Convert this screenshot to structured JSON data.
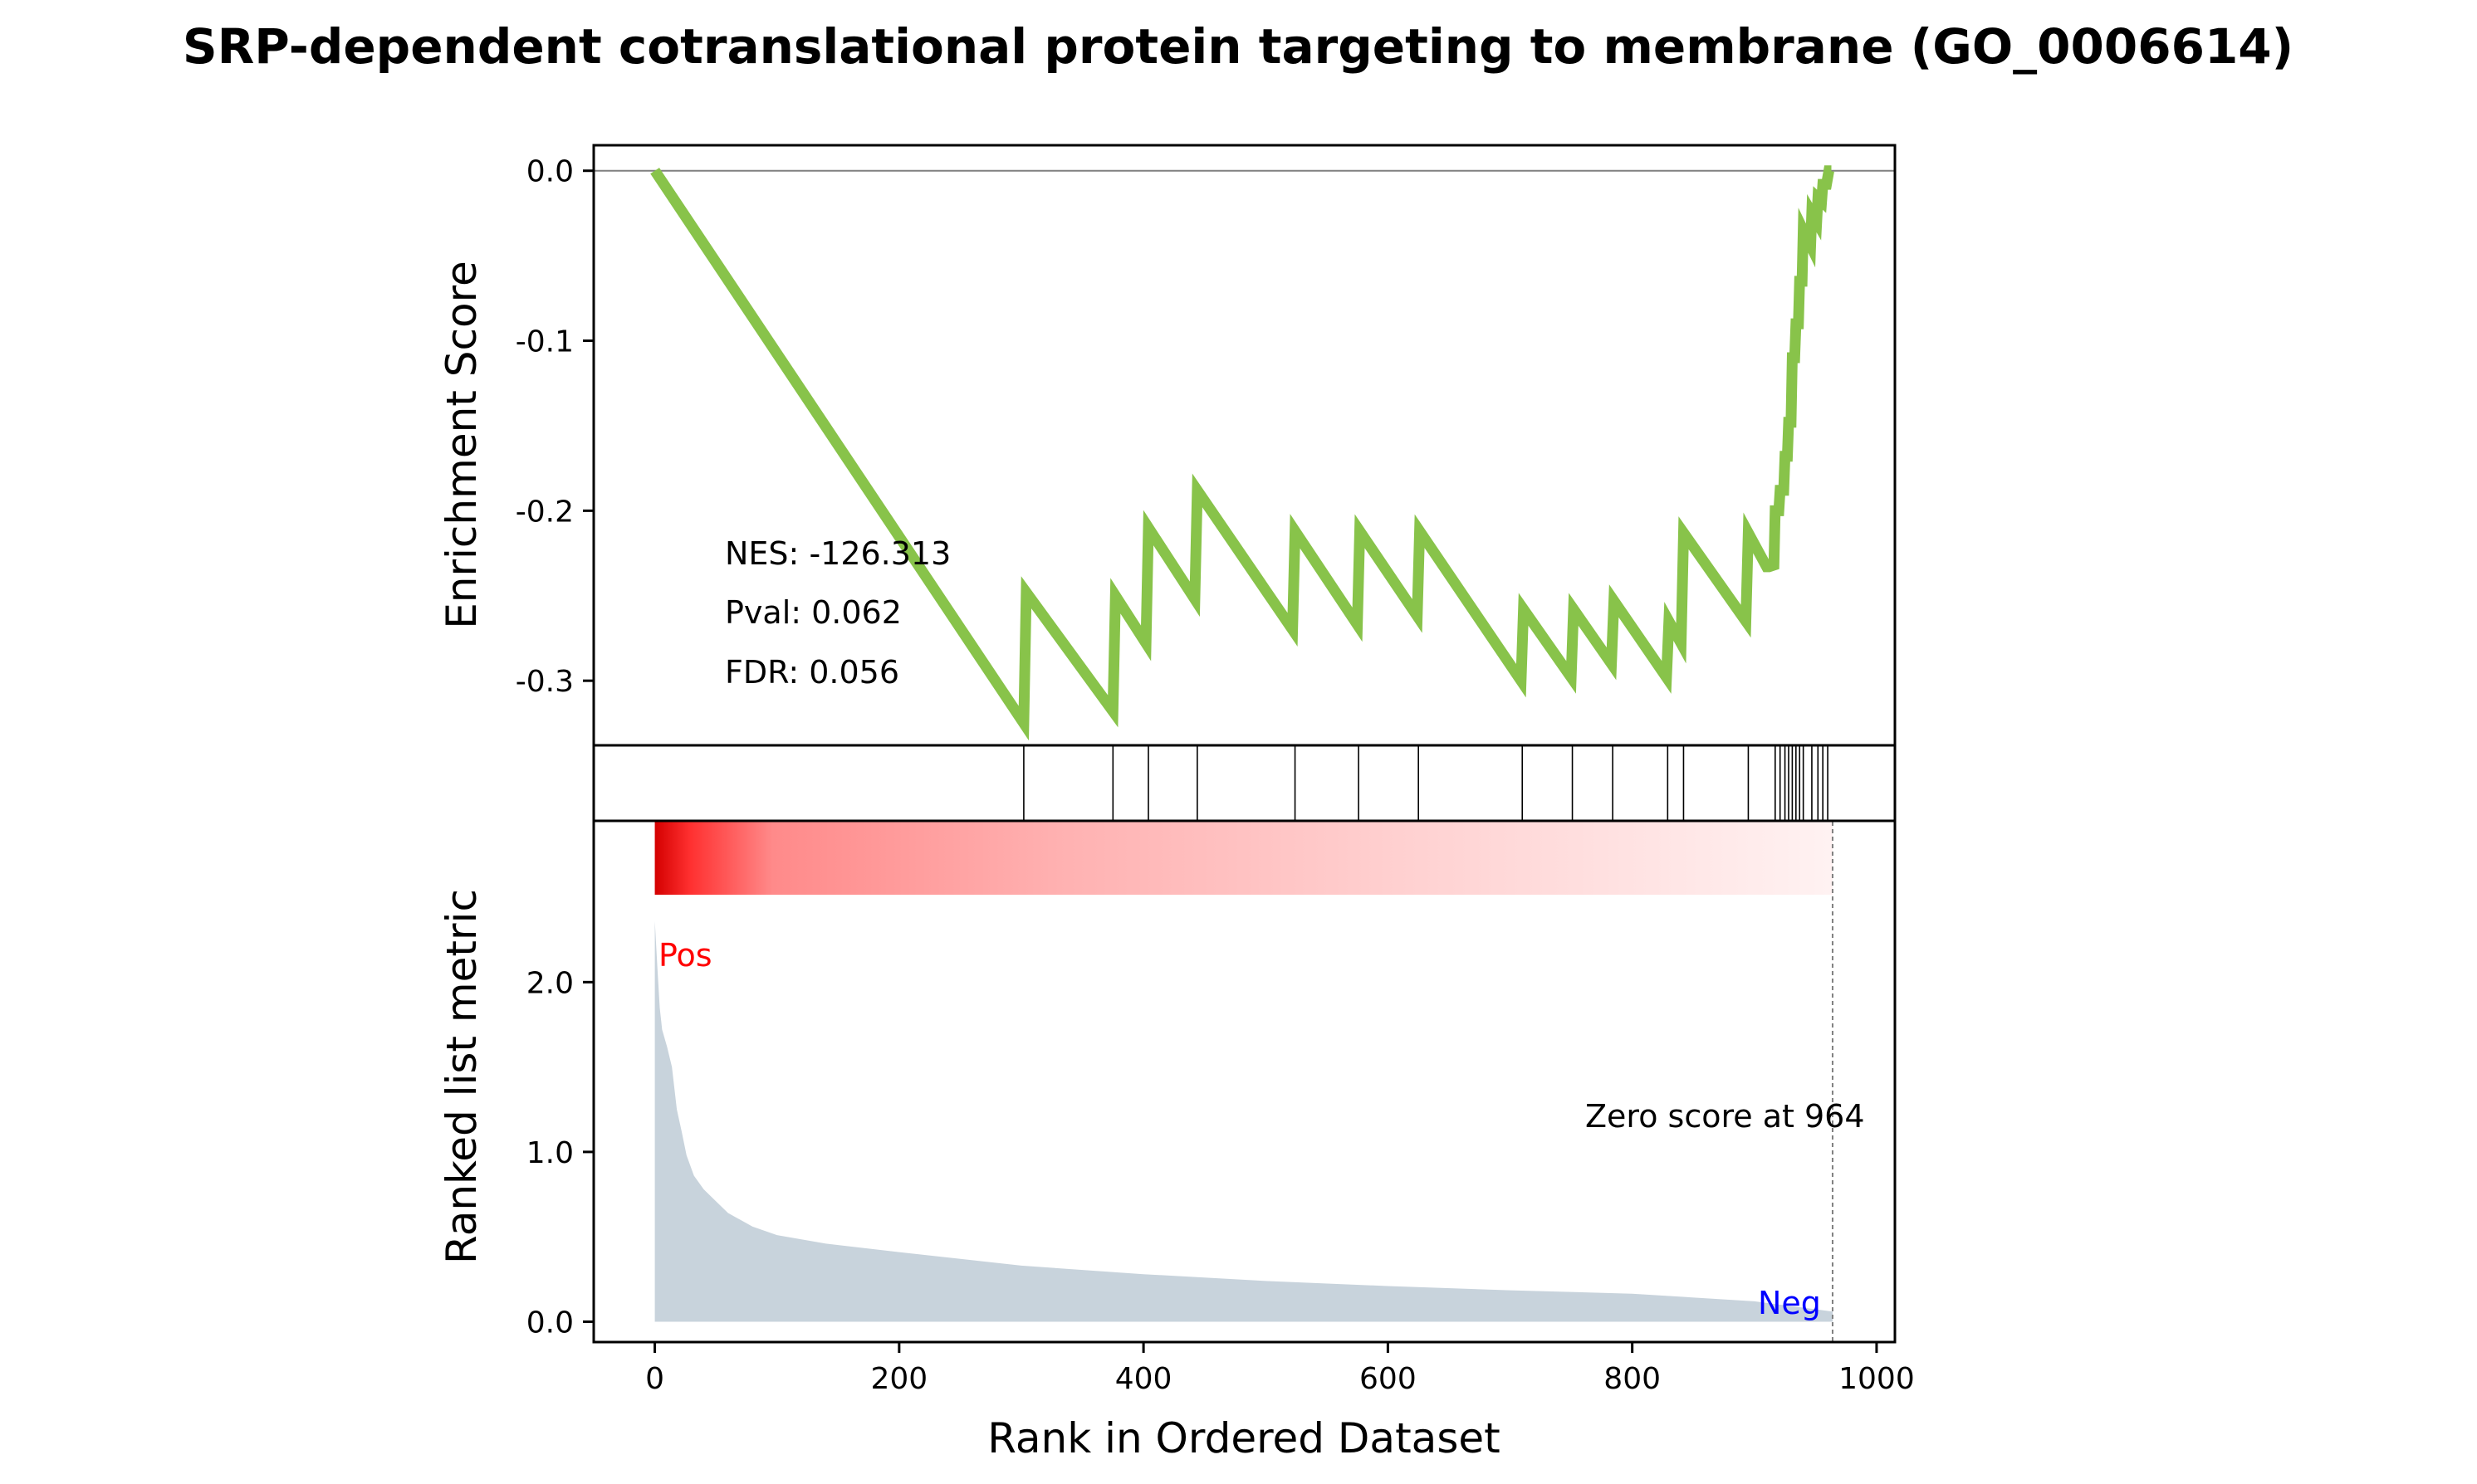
{
  "title": "SRP-dependent cotranslational protein targeting to membrane (GO_0006614)",
  "chart_data": {
    "type": "line",
    "title": "SRP-dependent cotranslational protein targeting to membrane (GO_0006614)",
    "xlabel": "Rank in Ordered Dataset",
    "xlim": [
      -50,
      1015
    ],
    "x_ticks": [
      0,
      200,
      400,
      600,
      800,
      1000
    ],
    "x_tick_labels": [
      "0",
      "200",
      "400",
      "600",
      "800",
      "1000"
    ],
    "panels": {
      "enrichment": {
        "ylabel": "Enrichment Score",
        "ylim": [
          -0.338,
          0.015
        ],
        "y_ticks": [
          0.0,
          -0.1,
          -0.2,
          -0.3
        ],
        "y_tick_labels": [
          "0.0",
          "-0.1",
          "-0.2",
          "-0.3"
        ],
        "line_color": "#88c34a",
        "zero_line_color": "#808080",
        "annotations": {
          "nes": "NES: -126.313",
          "pval": "Pval: 0.062",
          "fdr": "FDR: 0.056"
        },
        "running_es": [
          [
            0,
            0.0
          ],
          [
            302,
            -0.325
          ],
          [
            304,
            -0.248
          ],
          [
            375,
            -0.318
          ],
          [
            377,
            -0.25
          ],
          [
            402,
            -0.278
          ],
          [
            404,
            -0.21
          ],
          [
            442,
            -0.252
          ],
          [
            444,
            -0.188
          ],
          [
            522,
            -0.27
          ],
          [
            524,
            -0.212
          ],
          [
            575,
            -0.267
          ],
          [
            577,
            -0.212
          ],
          [
            624,
            -0.262
          ],
          [
            626,
            -0.212
          ],
          [
            709,
            -0.3
          ],
          [
            711,
            -0.258
          ],
          [
            750,
            -0.298
          ],
          [
            752,
            -0.258
          ],
          [
            783,
            -0.29
          ],
          [
            785,
            -0.253
          ],
          [
            828,
            -0.298
          ],
          [
            830,
            -0.265
          ],
          [
            840,
            -0.278
          ],
          [
            842,
            -0.213
          ],
          [
            893,
            -0.265
          ],
          [
            895,
            -0.213
          ],
          [
            910,
            -0.233
          ],
          [
            912,
            -0.233
          ],
          [
            916,
            -0.232
          ],
          [
            917,
            -0.2
          ],
          [
            920,
            -0.2
          ],
          [
            921,
            -0.188
          ],
          [
            924,
            -0.188
          ],
          [
            925,
            -0.168
          ],
          [
            927,
            -0.168
          ],
          [
            928,
            -0.148
          ],
          [
            930,
            -0.148
          ],
          [
            931,
            -0.11
          ],
          [
            933,
            -0.11
          ],
          [
            934,
            -0.09
          ],
          [
            936,
            -0.09
          ],
          [
            937,
            -0.065
          ],
          [
            939,
            -0.065
          ],
          [
            940,
            -0.035
          ],
          [
            946,
            -0.044
          ],
          [
            947,
            -0.025
          ],
          [
            951,
            -0.03
          ],
          [
            952,
            -0.016
          ],
          [
            955,
            -0.018
          ],
          [
            956,
            -0.008
          ],
          [
            959,
            -0.008
          ],
          [
            961,
            0.0
          ],
          [
            963,
            0.0
          ]
        ]
      },
      "hits": {
        "positions": [
          302,
          375,
          404,
          444,
          524,
          576,
          625,
          710,
          751,
          784,
          829,
          842,
          895,
          917,
          921,
          925,
          928,
          931,
          934,
          937,
          940,
          947,
          952,
          956,
          960
        ]
      },
      "ranked_metric": {
        "ylabel": "Ranked list metric",
        "ylim": [
          -0.12,
          2.95
        ],
        "y_ticks": [
          0.0,
          1.0,
          2.0
        ],
        "y_tick_labels": [
          "0.0",
          "1.0",
          "2.0"
        ],
        "fill_color": "#c8d3dc",
        "pos_label": "Pos",
        "neg_label": "Neg",
        "zero_score_label": "Zero score at 964",
        "zero_score_rank": 964,
        "profile": [
          [
            0,
            2.36
          ],
          [
            2,
            2.1
          ],
          [
            4,
            1.85
          ],
          [
            6,
            1.72
          ],
          [
            10,
            1.62
          ],
          [
            14,
            1.5
          ],
          [
            18,
            1.25
          ],
          [
            22,
            1.12
          ],
          [
            26,
            0.98
          ],
          [
            32,
            0.86
          ],
          [
            40,
            0.78
          ],
          [
            50,
            0.71
          ],
          [
            60,
            0.64
          ],
          [
            80,
            0.56
          ],
          [
            100,
            0.51
          ],
          [
            140,
            0.46
          ],
          [
            200,
            0.41
          ],
          [
            300,
            0.33
          ],
          [
            400,
            0.28
          ],
          [
            500,
            0.24
          ],
          [
            600,
            0.21
          ],
          [
            700,
            0.185
          ],
          [
            800,
            0.165
          ],
          [
            900,
            0.12
          ],
          [
            964,
            0.06
          ]
        ]
      }
    }
  }
}
